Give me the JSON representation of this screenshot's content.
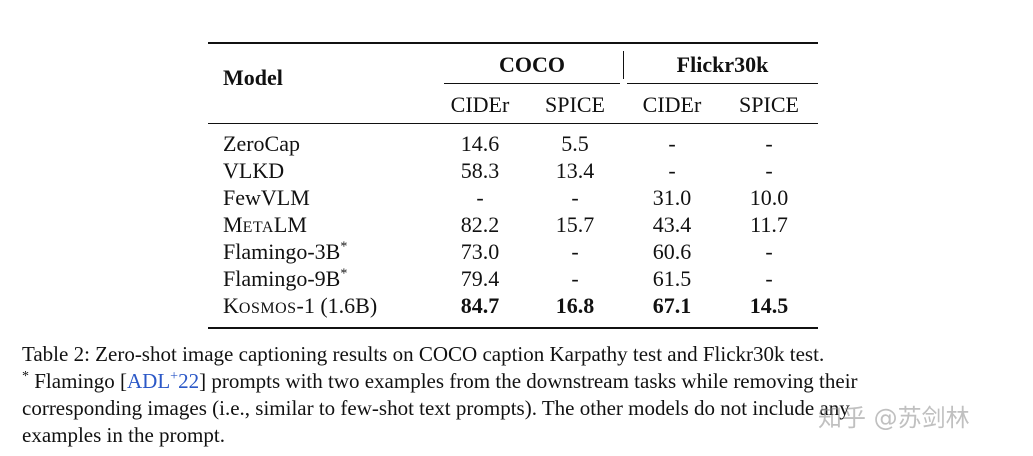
{
  "table": {
    "headers": {
      "model": "Model",
      "groups": [
        "COCO",
        "Flickr30k"
      ],
      "metrics": [
        "CIDEr",
        "SPICE",
        "CIDEr",
        "SPICE"
      ]
    },
    "rows": [
      {
        "model": "ZeroCap",
        "values": [
          "14.6",
          "5.5",
          "-",
          "-"
        ]
      },
      {
        "model": "VLKD",
        "values": [
          "58.3",
          "13.4",
          "-",
          "-"
        ]
      },
      {
        "model": "FewVLM",
        "values": [
          "-",
          "-",
          "31.0",
          "10.0"
        ]
      },
      {
        "model_parts": [
          "M",
          "ETA",
          "LM"
        ],
        "values": [
          "82.2",
          "15.7",
          "43.4",
          "11.7"
        ]
      },
      {
        "model": "Flamingo-3B",
        "model_sup": "*",
        "values": [
          "73.0",
          "-",
          "60.6",
          "-"
        ]
      },
      {
        "model": "Flamingo-9B",
        "model_sup": "*",
        "values": [
          "79.4",
          "-",
          "61.5",
          "-"
        ]
      },
      {
        "model_parts": [
          "K",
          "OSMOS",
          "-1 (1.6B)"
        ],
        "values": [
          "84.7",
          "16.8",
          "67.1",
          "14.5"
        ]
      }
    ]
  },
  "caption": {
    "line1": "Table 2: Zero-shot image captioning results on COCO caption Karpathy test and Flickr30k test.",
    "footnote_marker": "*",
    "line2_a": " Flamingo [",
    "cite_a": "ADL",
    "cite_sup": "+",
    "cite_b": "22",
    "line2_b": "] prompts with two examples from the downstream tasks while removing their",
    "line3": "corresponding images (i.e., similar to few-shot text prompts). The other models do not include any",
    "line4": "examples in the prompt."
  },
  "watermark": "知乎 @苏剑林"
}
